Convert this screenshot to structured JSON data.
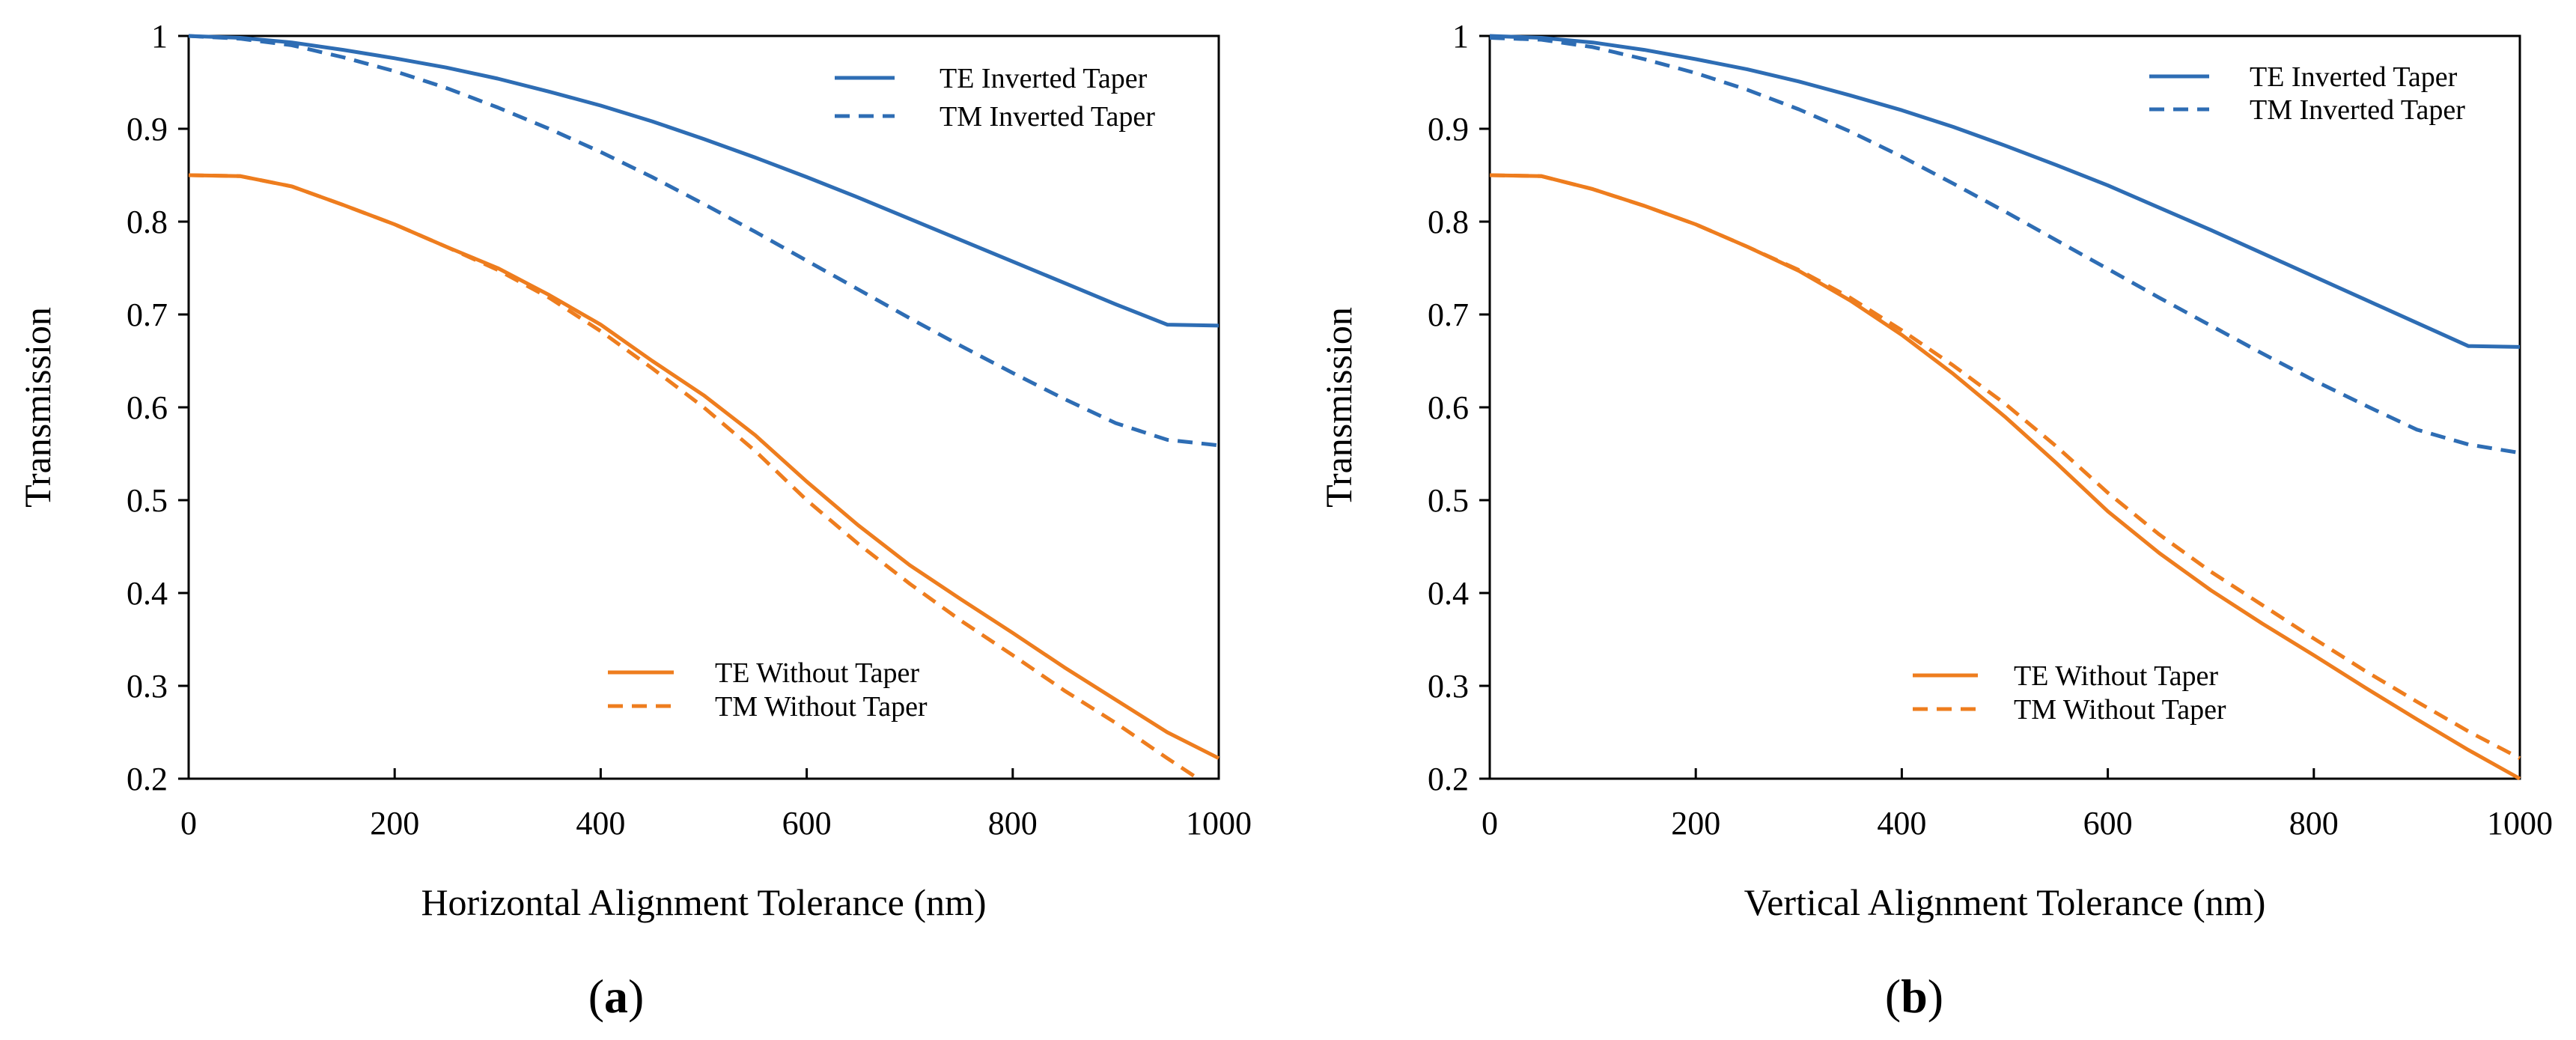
{
  "colors": {
    "blue": "#2E6DB4",
    "orange": "#EE7D1E",
    "axis": "#000000"
  },
  "chart_data": [
    {
      "type": "line",
      "panel_label": "a",
      "xlabel": "Horizontal Alignment Tolerance (nm)",
      "ylabel": "Transmission",
      "xlim": [
        0,
        1000
      ],
      "ylim": [
        0.2,
        1
      ],
      "xticks": [
        "0",
        "200",
        "400",
        "600",
        "800",
        "1000"
      ],
      "yticks": [
        "0.2",
        "0.3",
        "0.4",
        "0.5",
        "0.6",
        "0.7",
        "0.8",
        "0.9",
        "1"
      ],
      "series": [
        {
          "name": "TE Inverted Taper",
          "color": "blue",
          "dash": "solid",
          "x": [
            0,
            50,
            100,
            150,
            200,
            250,
            300,
            350,
            400,
            450,
            500,
            550,
            600,
            650,
            700,
            750,
            800,
            850,
            900,
            950,
            1000
          ],
          "values": [
            1.0,
            0.998,
            0.993,
            0.985,
            0.976,
            0.966,
            0.954,
            0.94,
            0.925,
            0.908,
            0.889,
            0.869,
            0.848,
            0.826,
            0.803,
            0.78,
            0.757,
            0.734,
            0.711,
            0.689,
            0.688
          ]
        },
        {
          "name": "TM Inverted Taper",
          "color": "blue",
          "dash": "dashed",
          "x": [
            0,
            50,
            100,
            150,
            200,
            250,
            300,
            350,
            400,
            450,
            500,
            550,
            600,
            650,
            700,
            750,
            800,
            850,
            900,
            950,
            1000
          ],
          "values": [
            1.0,
            0.997,
            0.99,
            0.977,
            0.962,
            0.944,
            0.923,
            0.9,
            0.875,
            0.848,
            0.819,
            0.789,
            0.758,
            0.727,
            0.696,
            0.666,
            0.637,
            0.609,
            0.583,
            0.565,
            0.559
          ]
        },
        {
          "name": "TE Without Taper",
          "color": "orange",
          "dash": "solid",
          "x": [
            0,
            50,
            100,
            150,
            200,
            250,
            300,
            350,
            400,
            450,
            500,
            550,
            600,
            650,
            700,
            750,
            800,
            850,
            900,
            950,
            1000
          ],
          "values": [
            0.85,
            0.849,
            0.838,
            0.818,
            0.797,
            0.773,
            0.75,
            0.721,
            0.689,
            0.65,
            0.613,
            0.57,
            0.52,
            0.473,
            0.43,
            0.393,
            0.357,
            0.32,
            0.285,
            0.25,
            0.222
          ]
        },
        {
          "name": "TM Without Taper",
          "color": "orange",
          "dash": "dashed",
          "x": [
            0,
            50,
            100,
            150,
            200,
            250,
            300,
            350,
            400,
            450,
            500,
            550,
            600,
            650,
            700,
            750,
            800,
            850,
            900,
            950,
            980
          ],
          "values": [
            0.85,
            0.849,
            0.838,
            0.818,
            0.797,
            0.773,
            0.748,
            0.718,
            0.682,
            0.642,
            0.6,
            0.553,
            0.5,
            0.453,
            0.41,
            0.37,
            0.333,
            0.295,
            0.26,
            0.222,
            0.2
          ]
        }
      ],
      "legend_upper": [
        "TE Inverted Taper",
        "TM Inverted Taper"
      ],
      "legend_lower": [
        "TE Without Taper",
        "TM Without Taper"
      ]
    },
    {
      "type": "line",
      "panel_label": "b",
      "xlabel": "Vertical Alignment Tolerance (nm)",
      "ylabel": "Transmission",
      "xlim": [
        0,
        1000
      ],
      "ylim": [
        0.2,
        1
      ],
      "xticks": [
        "0",
        "200",
        "400",
        "600",
        "800",
        "1000"
      ],
      "yticks": [
        "0.2",
        "0.3",
        "0.4",
        "0.5",
        "0.6",
        "0.7",
        "0.8",
        "0.9",
        "1"
      ],
      "series": [
        {
          "name": "TE Inverted Taper",
          "color": "blue",
          "dash": "solid",
          "x": [
            0,
            50,
            100,
            150,
            200,
            250,
            300,
            350,
            400,
            450,
            500,
            550,
            600,
            650,
            700,
            750,
            800,
            850,
            900,
            950,
            1000
          ],
          "values": [
            1.0,
            0.998,
            0.993,
            0.985,
            0.975,
            0.964,
            0.951,
            0.936,
            0.92,
            0.902,
            0.882,
            0.861,
            0.839,
            0.815,
            0.791,
            0.766,
            0.741,
            0.716,
            0.691,
            0.666,
            0.665
          ]
        },
        {
          "name": "TM Inverted Taper",
          "color": "blue",
          "dash": "dashed",
          "x": [
            0,
            50,
            100,
            150,
            200,
            250,
            300,
            350,
            400,
            450,
            500,
            550,
            600,
            650,
            700,
            750,
            800,
            850,
            900,
            950,
            1000
          ],
          "values": [
            0.998,
            0.996,
            0.988,
            0.975,
            0.96,
            0.942,
            0.921,
            0.897,
            0.87,
            0.841,
            0.811,
            0.78,
            0.749,
            0.718,
            0.688,
            0.658,
            0.629,
            0.602,
            0.576,
            0.56,
            0.551
          ]
        },
        {
          "name": "TE Without Taper",
          "color": "orange",
          "dash": "solid",
          "x": [
            0,
            50,
            100,
            150,
            200,
            250,
            300,
            350,
            400,
            450,
            500,
            550,
            600,
            650,
            700,
            750,
            800,
            850,
            900,
            950,
            1000
          ],
          "values": [
            0.85,
            0.849,
            0.835,
            0.817,
            0.797,
            0.773,
            0.747,
            0.715,
            0.678,
            0.636,
            0.59,
            0.54,
            0.488,
            0.443,
            0.403,
            0.367,
            0.333,
            0.298,
            0.264,
            0.231,
            0.2
          ]
        },
        {
          "name": "TM Without Taper",
          "color": "orange",
          "dash": "dashed",
          "x": [
            0,
            50,
            100,
            150,
            200,
            250,
            300,
            350,
            400,
            450,
            500,
            550,
            600,
            650,
            700,
            750,
            800,
            850,
            900,
            950,
            1000
          ],
          "values": [
            0.85,
            0.849,
            0.835,
            0.817,
            0.797,
            0.773,
            0.748,
            0.718,
            0.683,
            0.645,
            0.604,
            0.558,
            0.508,
            0.463,
            0.423,
            0.387,
            0.351,
            0.316,
            0.283,
            0.251,
            0.222
          ]
        }
      ],
      "legend_upper": [
        "TE Inverted Taper",
        "TM Inverted Taper"
      ],
      "legend_lower": [
        "TE Without Taper",
        "TM Without Taper"
      ]
    }
  ]
}
